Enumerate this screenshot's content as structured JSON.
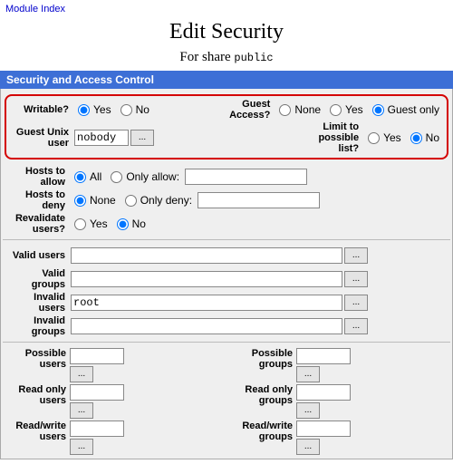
{
  "nav": {
    "module_index": "Module Index"
  },
  "page": {
    "title": "Edit Security",
    "for_share_label": "For share",
    "share_name": "public"
  },
  "section": {
    "header": "Security and Access Control"
  },
  "writable": {
    "label": "Writable?",
    "opt_yes": "Yes",
    "opt_no": "No",
    "value": "Yes"
  },
  "guest_access": {
    "label": "Guest\nAccess?",
    "opt_none": "None",
    "opt_yes": "Yes",
    "opt_guestonly": "Guest only",
    "value": "Guest only"
  },
  "guest_unix": {
    "label": "Guest Unix\nuser",
    "value": "nobody",
    "browse": "..."
  },
  "limit_possible": {
    "label": "Limit to\npossible\nlist?",
    "opt_yes": "Yes",
    "opt_no": "No",
    "value": "No"
  },
  "hosts_allow": {
    "label": "Hosts to\nallow",
    "opt_all": "All",
    "opt_only": "Only allow:",
    "value": "All",
    "text": ""
  },
  "hosts_deny": {
    "label": "Hosts to\ndeny",
    "opt_none": "None",
    "opt_only": "Only deny:",
    "value": "None",
    "text": ""
  },
  "revalidate": {
    "label": "Revalidate\nusers?",
    "opt_yes": "Yes",
    "opt_no": "No",
    "value": "No"
  },
  "valid_users": {
    "label": "Valid users",
    "value": "",
    "browse": "..."
  },
  "valid_groups": {
    "label": "Valid\ngroups",
    "value": "",
    "browse": "..."
  },
  "invalid_users": {
    "label": "Invalid\nusers",
    "value": "root",
    "browse": "..."
  },
  "invalid_groups": {
    "label": "Invalid\ngroups",
    "value": "",
    "browse": "..."
  },
  "possible_users": {
    "label": "Possible\nusers",
    "value": "",
    "browse": "..."
  },
  "possible_groups": {
    "label": "Possible\ngroups",
    "value": "",
    "browse": "..."
  },
  "readonly_users": {
    "label": "Read only\nusers",
    "value": "",
    "browse": "..."
  },
  "readonly_groups": {
    "label": "Read only\ngroups",
    "value": "",
    "browse": "..."
  },
  "readwrite_users": {
    "label": "Read/write\nusers",
    "value": "",
    "browse": "..."
  },
  "readwrite_groups": {
    "label": "Read/write\ngroups",
    "value": "",
    "browse": "..."
  },
  "colors": {
    "header_bg": "#3d6fd6",
    "panel_bg": "#efefef",
    "highlight_border": "#d40000"
  }
}
